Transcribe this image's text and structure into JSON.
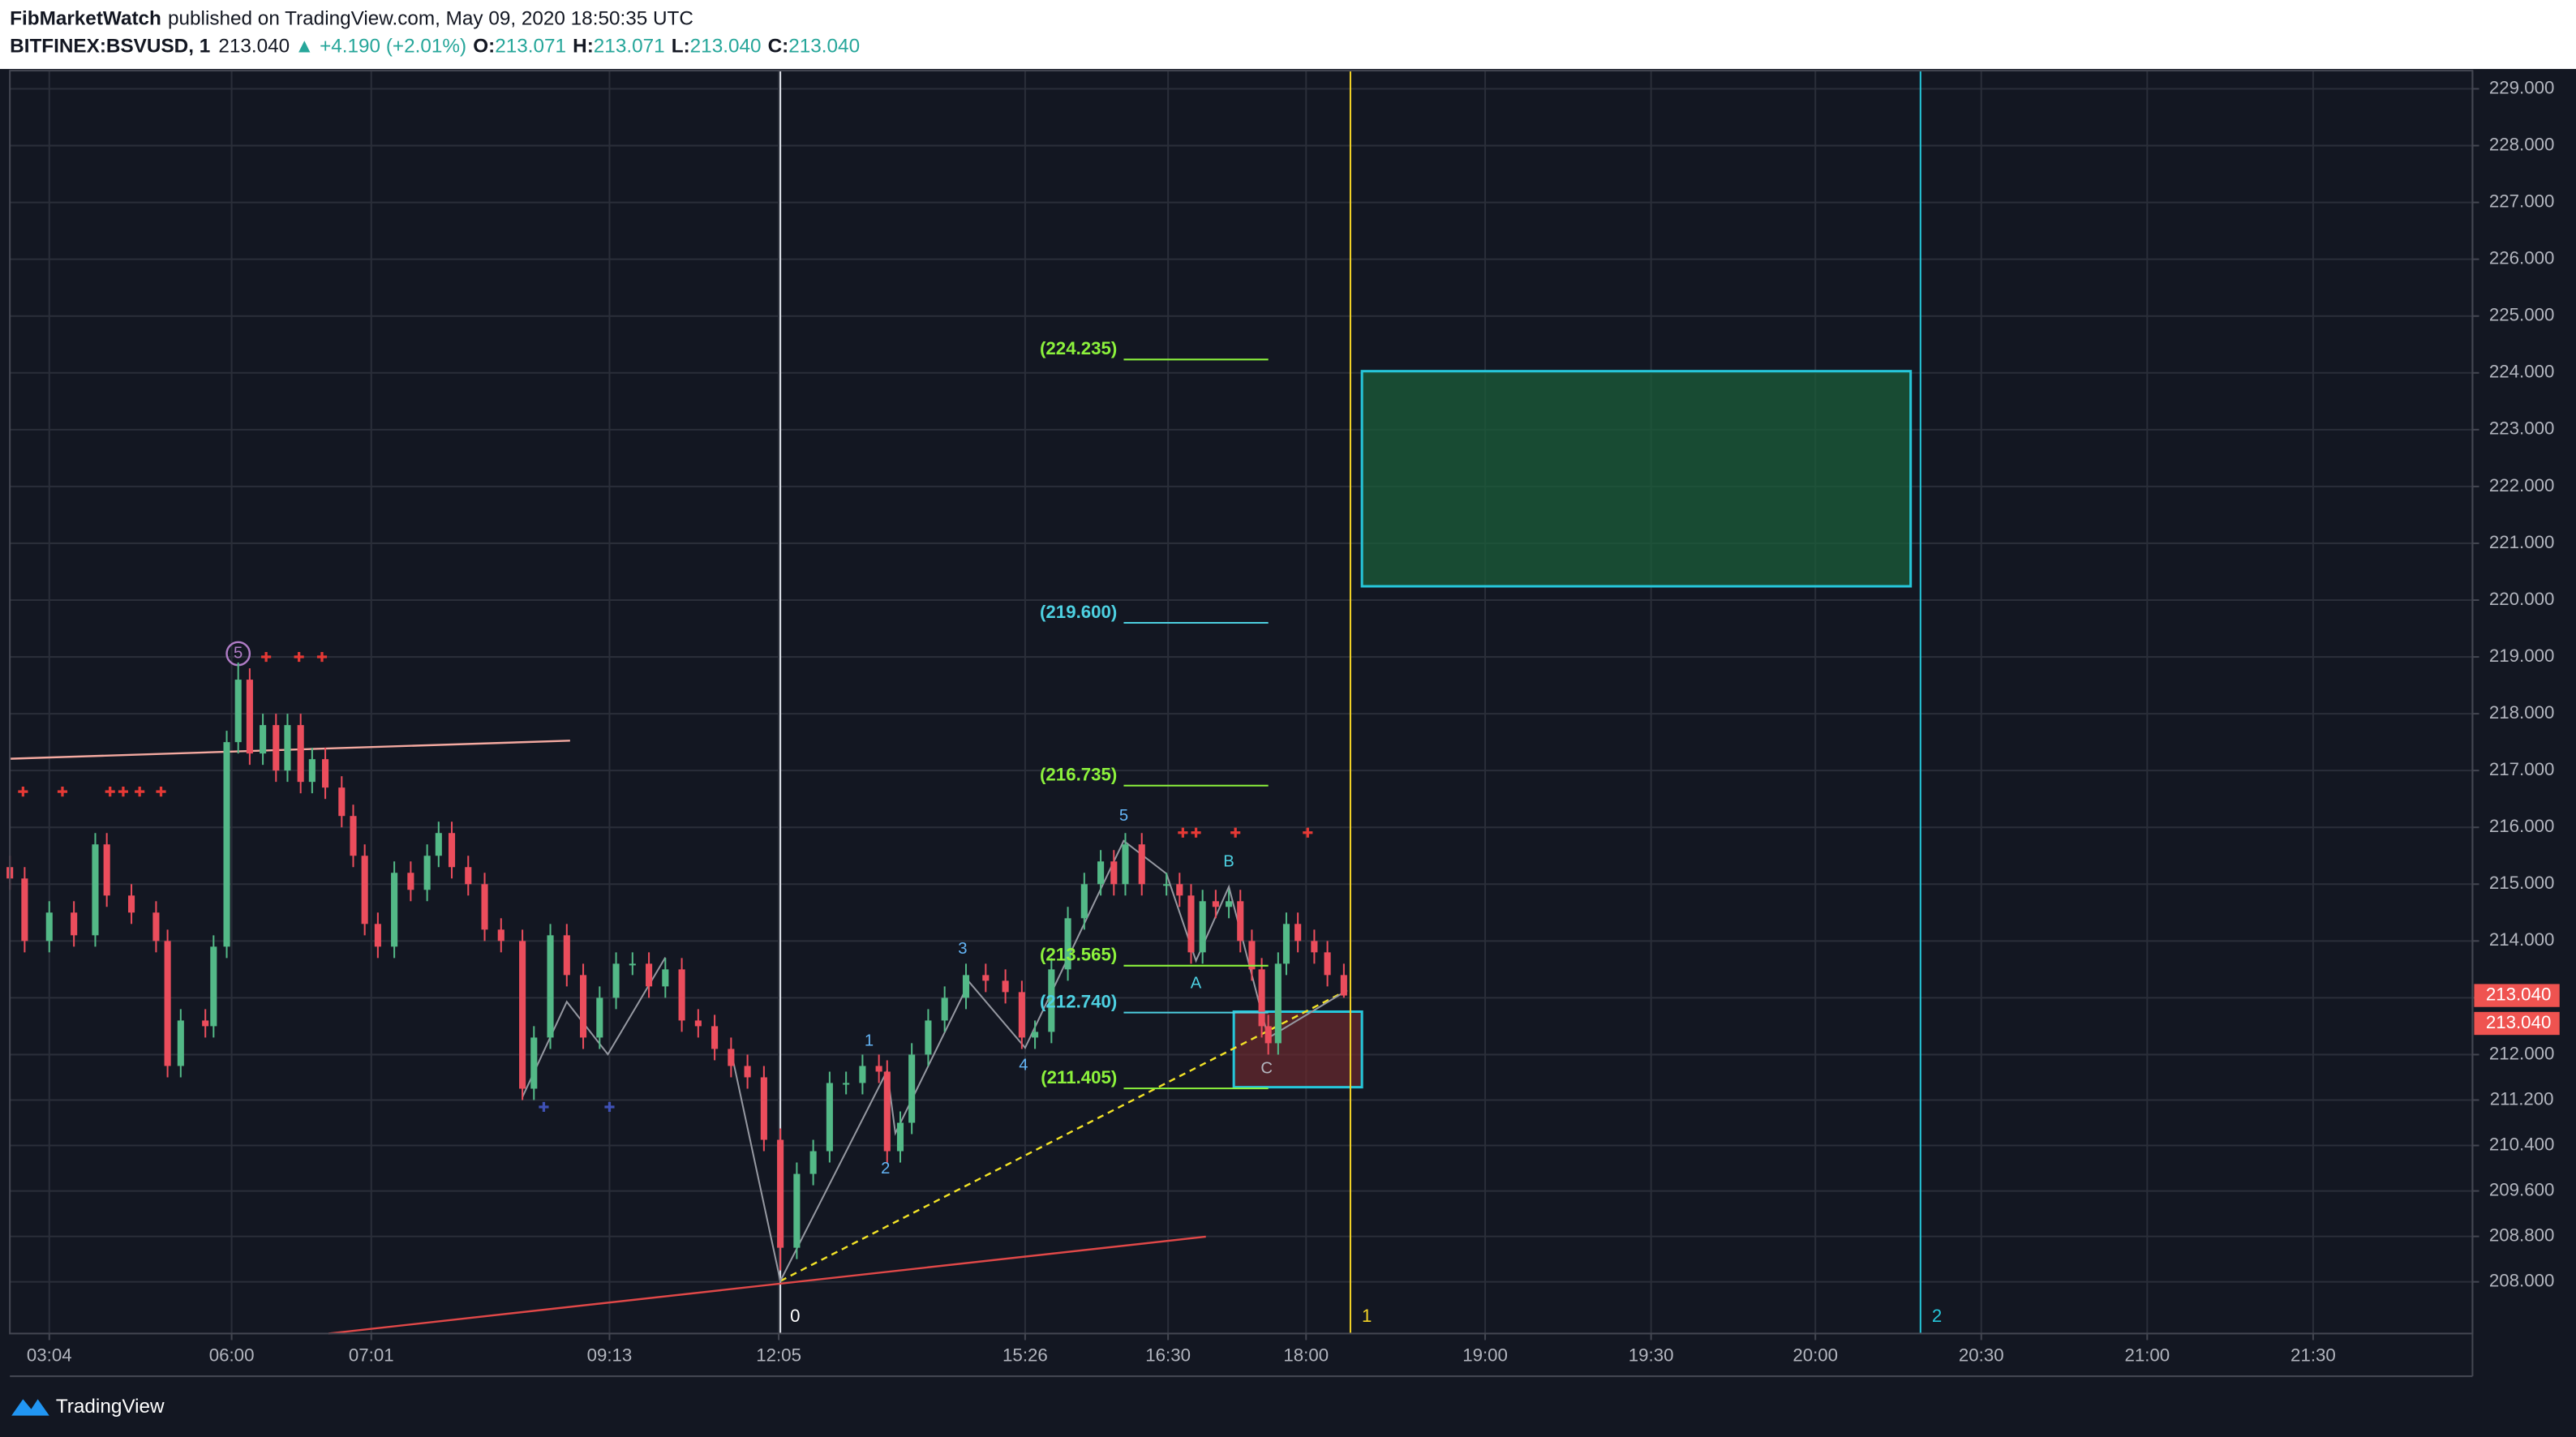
{
  "header": {
    "publisher": "FibMarketWatch",
    "published": "published on TradingView.com, May 09, 2020 18:50:35 UTC",
    "symbol": "BITFINEX:BSVUSD, 1",
    "price": "213.040",
    "change": "▲ +4.190 (+2.01%)",
    "o_label": "O:",
    "o": "213.071",
    "h_label": "H:",
    "h": "213.071",
    "l_label": "L:",
    "l": "213.040",
    "c_label": "C:",
    "c": "213.040"
  },
  "chart_data": {
    "type": "candlestick",
    "x": [
      0,
      9,
      24,
      39,
      52,
      59,
      74,
      89,
      96,
      104,
      119,
      124,
      132,
      139,
      146,
      154,
      162,
      169,
      177,
      184,
      192,
      202,
      209,
      216,
      224,
      234,
      244,
      254,
      261,
      269,
      279,
      289,
      299,
      312,
      319,
      329,
      339,
      349,
      359,
      369,
      379,
      389,
      399,
      409,
      419,
      429,
      439,
      449,
      459,
      469,
      479,
      489,
      499,
      509,
      519,
      529,
      534,
      542,
      549,
      559,
      569,
      582,
      594,
      606,
      616,
      624,
      634,
      644,
      654,
      664,
      672,
      679,
      689,
      704,
      712,
      719,
      726,
      734,
      742,
      749,
      756,
      762,
      766,
      772,
      777,
      784,
      794,
      802,
      812
    ],
    "open": [
      215.3,
      215.1,
      214.0,
      214.5,
      214.1,
      215.7,
      214.8,
      214.5,
      214.0,
      211.8,
      212.6,
      212.5,
      213.9,
      217.5,
      218.6,
      217.3,
      217.8,
      217.0,
      217.8,
      216.8,
      217.2,
      216.7,
      216.2,
      215.5,
      214.3,
      213.9,
      215.2,
      214.9,
      215.5,
      215.9,
      215.3,
      215.0,
      214.2,
      214.0,
      211.4,
      212.3,
      214.1,
      213.4,
      212.3,
      213.0,
      213.6,
      213.6,
      213.2,
      213.5,
      212.6,
      212.5,
      212.1,
      211.8,
      211.6,
      210.5,
      208.6,
      209.9,
      210.3,
      211.5,
      211.5,
      211.8,
      211.7,
      210.3,
      210.8,
      212.0,
      212.6,
      213.0,
      213.4,
      213.3,
      213.1,
      212.3,
      212.4,
      213.5,
      214.4,
      215.0,
      215.4,
      215.0,
      215.7,
      215.0,
      215.0,
      214.8,
      213.8,
      214.7,
      214.6,
      214.7,
      214.0,
      213.5,
      212.5,
      212.2,
      213.6,
      214.3,
      214.0,
      213.8,
      213.4
    ],
    "high": [
      215.5,
      215.3,
      214.7,
      214.7,
      215.9,
      215.9,
      215.0,
      214.7,
      214.2,
      212.8,
      212.8,
      214.1,
      217.7,
      218.9,
      218.8,
      218.0,
      218.0,
      218.0,
      218.0,
      217.4,
      217.4,
      216.9,
      216.4,
      215.7,
      214.5,
      215.4,
      215.4,
      215.7,
      216.1,
      216.1,
      215.5,
      215.2,
      214.4,
      214.2,
      212.5,
      214.3,
      214.3,
      213.6,
      213.2,
      213.8,
      213.8,
      213.8,
      213.7,
      213.7,
      212.8,
      212.7,
      212.3,
      212.0,
      211.8,
      210.7,
      210.1,
      210.5,
      211.7,
      211.7,
      212.0,
      212.0,
      211.9,
      211.0,
      212.2,
      212.8,
      213.2,
      213.6,
      213.6,
      213.5,
      213.3,
      212.6,
      213.7,
      214.6,
      215.2,
      215.6,
      215.6,
      215.9,
      215.9,
      215.2,
      215.2,
      215.0,
      214.9,
      214.9,
      214.9,
      214.9,
      214.2,
      213.7,
      212.7,
      213.8,
      214.5,
      214.5,
      214.2,
      214.0,
      213.6
    ],
    "low": [
      214.9,
      213.8,
      213.8,
      213.9,
      213.9,
      214.6,
      214.3,
      213.8,
      211.6,
      211.6,
      212.3,
      212.3,
      213.7,
      217.3,
      217.1,
      217.1,
      216.8,
      216.8,
      216.6,
      216.6,
      216.5,
      216.0,
      215.3,
      214.1,
      213.7,
      213.7,
      214.7,
      214.7,
      215.3,
      215.1,
      214.8,
      214.0,
      213.8,
      211.2,
      211.2,
      212.1,
      213.2,
      212.1,
      212.1,
      212.8,
      213.4,
      213.0,
      213.0,
      212.4,
      212.3,
      211.9,
      211.6,
      211.4,
      210.3,
      208.2,
      208.4,
      209.7,
      210.1,
      211.3,
      211.3,
      211.5,
      210.1,
      210.1,
      210.6,
      211.8,
      212.4,
      212.8,
      213.1,
      212.9,
      212.1,
      212.1,
      212.2,
      213.3,
      214.2,
      214.8,
      214.8,
      214.8,
      214.8,
      214.8,
      214.6,
      213.6,
      213.6,
      214.4,
      214.4,
      213.8,
      213.3,
      212.3,
      212.0,
      212.0,
      213.4,
      213.8,
      213.6,
      213.2,
      213.0
    ],
    "close": [
      215.1,
      214.0,
      214.5,
      214.1,
      215.7,
      214.8,
      214.5,
      214.0,
      211.8,
      212.6,
      212.5,
      213.9,
      217.5,
      218.6,
      217.3,
      217.8,
      217.0,
      217.8,
      216.8,
      217.2,
      216.7,
      216.2,
      215.5,
      214.3,
      213.9,
      215.2,
      214.9,
      215.5,
      215.9,
      215.3,
      215.0,
      214.2,
      214.0,
      211.4,
      212.3,
      214.1,
      213.4,
      212.3,
      213.0,
      213.6,
      213.6,
      213.2,
      213.5,
      212.6,
      212.5,
      212.1,
      211.8,
      211.6,
      210.5,
      208.6,
      209.9,
      210.3,
      211.5,
      211.5,
      211.8,
      211.7,
      210.3,
      210.8,
      212.0,
      212.6,
      213.0,
      213.4,
      213.3,
      213.1,
      212.3,
      212.4,
      213.5,
      214.4,
      215.0,
      215.4,
      215.0,
      215.7,
      215.0,
      215.0,
      214.8,
      213.8,
      214.7,
      214.6,
      214.7,
      214.0,
      213.5,
      212.5,
      212.2,
      213.6,
      214.3,
      214.0,
      213.8,
      213.4,
      213.04
    ],
    "up_color": "#53b987",
    "down_color": "#eb4d5c",
    "xlim": [
      0,
      1499
    ],
    "xticks": [
      {
        "value": 24,
        "label": "03:04"
      },
      {
        "value": 135,
        "label": "06:00"
      },
      {
        "value": 220,
        "label": "07:01"
      },
      {
        "value": 365,
        "label": "09:13"
      },
      {
        "value": 468,
        "label": "12:05"
      },
      {
        "value": 618,
        "label": "15:26"
      },
      {
        "value": 705,
        "label": "16:30"
      },
      {
        "value": 789,
        "label": "18:00"
      },
      {
        "value": 898,
        "label": "19:00"
      },
      {
        "value": 999,
        "label": "19:30"
      },
      {
        "value": 1099,
        "label": "20:00"
      },
      {
        "value": 1200,
        "label": "20:30"
      },
      {
        "value": 1301,
        "label": "21:00"
      },
      {
        "value": 1402,
        "label": "21:30"
      }
    ],
    "ylim": [
      207.09,
      229.32
    ],
    "yticks": [
      {
        "value": 229,
        "label": "229.000"
      },
      {
        "value": 228,
        "label": "228.000"
      },
      {
        "value": 227,
        "label": "227.000"
      },
      {
        "value": 226,
        "label": "226.000"
      },
      {
        "value": 225,
        "label": "225.000"
      },
      {
        "value": 224,
        "label": "224.000"
      },
      {
        "value": 223,
        "label": "223.000"
      },
      {
        "value": 222,
        "label": "222.000"
      },
      {
        "value": 221,
        "label": "221.000"
      },
      {
        "value": 220,
        "label": "220.000"
      },
      {
        "value": 219,
        "label": "219.000"
      },
      {
        "value": 218,
        "label": "218.000"
      },
      {
        "value": 217,
        "label": "217.000"
      },
      {
        "value": 216,
        "label": "216.000"
      },
      {
        "value": 215,
        "label": "215.000"
      },
      {
        "value": 214,
        "label": "214.000"
      },
      {
        "value": 213,
        "label": "213.000"
      },
      {
        "value": 212,
        "label": "212.000"
      },
      {
        "value": 211.2,
        "label": "211.200"
      },
      {
        "value": 210.4,
        "label": "210.400"
      },
      {
        "value": 209.6,
        "label": "209.600"
      },
      {
        "value": 208.8,
        "label": "208.800"
      },
      {
        "value": 208,
        "label": "208.000"
      }
    ],
    "grid": true,
    "last_price": {
      "value": 213.04,
      "label": "213.040"
    },
    "fib_levels": [
      {
        "value": 224.235,
        "label": "(224.235)",
        "color": "#8cf23c"
      },
      {
        "value": 219.6,
        "label": "(219.600)",
        "color": "#4dd0e1"
      },
      {
        "value": 216.735,
        "label": "(216.735)",
        "color": "#8cf23c"
      },
      {
        "value": 213.565,
        "label": "(213.565)",
        "color": "#8cf23c"
      },
      {
        "value": 212.74,
        "label": "(212.740)",
        "color": "#4dd0e1"
      },
      {
        "value": 211.405,
        "label": "(211.405)",
        "color": "#8cf23c"
      }
    ],
    "peak_label": "5",
    "wave_labels": [
      "1",
      "2",
      "3",
      "4",
      "5",
      "A",
      "B",
      "C"
    ],
    "time_markers": [
      "0",
      "1",
      "2"
    ]
  },
  "footer": {
    "brand": "TradingView"
  }
}
